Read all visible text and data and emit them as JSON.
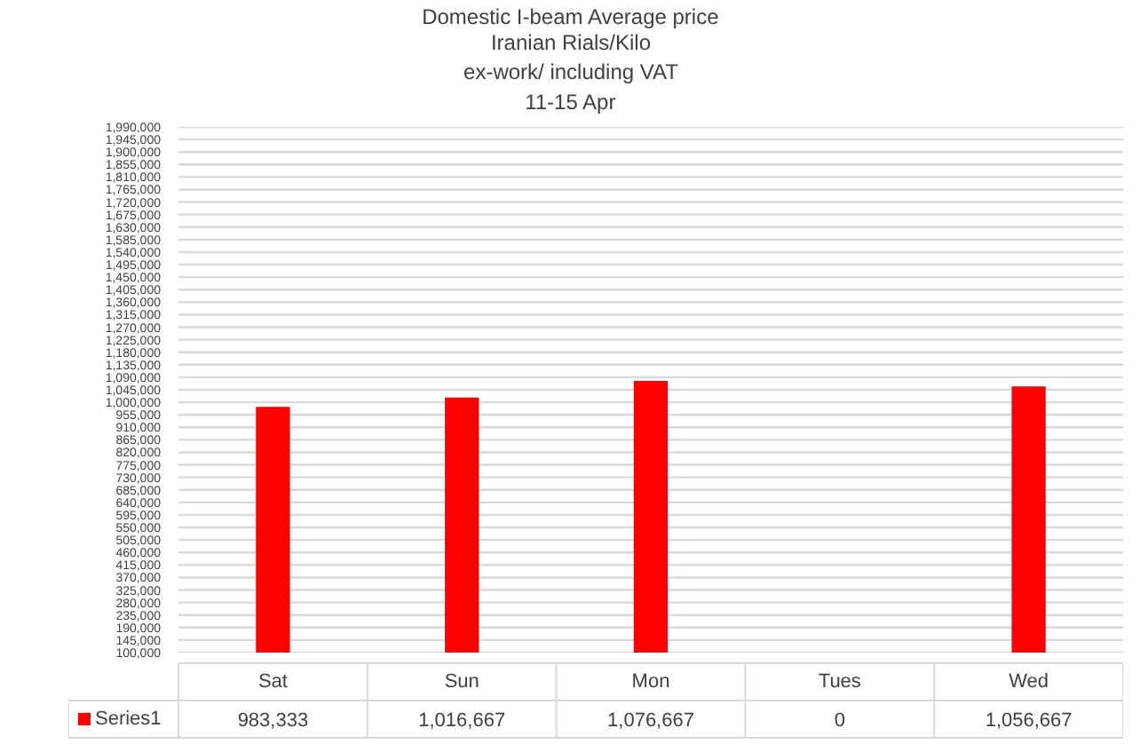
{
  "chart_data": {
    "type": "bar",
    "title": "Domestic I-beam Average price",
    "subtitle": "Iranian Rials/Kilo\nex-work/ including VAT\n11-15 Apr",
    "categories": [
      "Sat",
      "Sun",
      "Mon",
      "Tues",
      "Wed"
    ],
    "series": [
      {
        "name": "Series1",
        "color": "#ff0000",
        "values": [
          983333,
          1016667,
          1076667,
          null,
          1056667
        ],
        "value_labels": [
          "983,333",
          "1,016,667",
          "1,076,667",
          "0",
          "1,056,667"
        ]
      }
    ],
    "ylim": [
      100000,
      1990000
    ],
    "yticks": [
      {
        "value": 100000,
        "label": "100,000"
      },
      {
        "value": 145000,
        "label": "145,000"
      },
      {
        "value": 190000,
        "label": "190,000"
      },
      {
        "value": 235000,
        "label": "235,000"
      },
      {
        "value": 280000,
        "label": "280,000"
      },
      {
        "value": 325000,
        "label": "325,000"
      },
      {
        "value": 370000,
        "label": "370,000"
      },
      {
        "value": 415000,
        "label": "415,000"
      },
      {
        "value": 460000,
        "label": "460,000"
      },
      {
        "value": 505000,
        "label": "505,000"
      },
      {
        "value": 550000,
        "label": "550,000"
      },
      {
        "value": 595000,
        "label": "595,000"
      },
      {
        "value": 640000,
        "label": "640,000"
      },
      {
        "value": 685000,
        "label": "685,000"
      },
      {
        "value": 730000,
        "label": "730,000"
      },
      {
        "value": 775000,
        "label": "775,000"
      },
      {
        "value": 820000,
        "label": "820,000"
      },
      {
        "value": 865000,
        "label": "865,000"
      },
      {
        "value": 910000,
        "label": "910,000"
      },
      {
        "value": 955000,
        "label": "955,000"
      },
      {
        "value": 1000000,
        "label": "1,000,000"
      },
      {
        "value": 1045000,
        "label": "1,045,000"
      },
      {
        "value": 1090000,
        "label": "1,090,000"
      },
      {
        "value": 1135000,
        "label": "1,135,000"
      },
      {
        "value": 1180000,
        "label": "1,180,000"
      },
      {
        "value": 1225000,
        "label": "1,225,000"
      },
      {
        "value": 1270000,
        "label": "1,270,000"
      },
      {
        "value": 1315000,
        "label": "1,315,000"
      },
      {
        "value": 1360000,
        "label": "1,360,000"
      },
      {
        "value": 1405000,
        "label": "1,405,000"
      },
      {
        "value": 1450000,
        "label": "1,450,000"
      },
      {
        "value": 1495000,
        "label": "1,495,000"
      },
      {
        "value": 1540000,
        "label": "1,540,000"
      },
      {
        "value": 1585000,
        "label": "1,585,000"
      },
      {
        "value": 1630000,
        "label": "1,630,000"
      },
      {
        "value": 1675000,
        "label": "1,675,000"
      },
      {
        "value": 1720000,
        "label": "1,720,000"
      },
      {
        "value": 1765000,
        "label": "1,765,000"
      },
      {
        "value": 1810000,
        "label": "1,810,000"
      },
      {
        "value": 1855000,
        "label": "1,855,000"
      },
      {
        "value": 1900000,
        "label": "1,900,000"
      },
      {
        "value": 1945000,
        "label": "1,945,000"
      },
      {
        "value": 1990000,
        "label": "1,990,000"
      }
    ],
    "grid": "y"
  }
}
